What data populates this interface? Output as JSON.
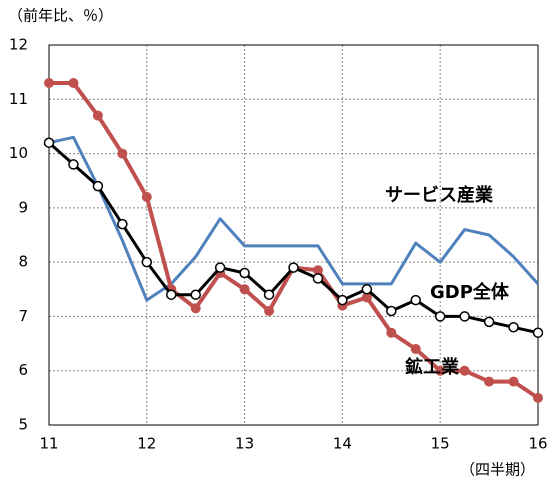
{
  "chart_data": {
    "type": "line",
    "title": "（前年比、％）",
    "xlabel": "（四半期）",
    "x": [
      11,
      11.25,
      11.5,
      11.75,
      12,
      12.25,
      12.5,
      12.75,
      13,
      13.25,
      13.5,
      13.75,
      14,
      14.25,
      14.5,
      14.75,
      15,
      15.25,
      15.5,
      15.75,
      16
    ],
    "series": [
      {
        "name": "サービス産業",
        "color": "#4f81bd",
        "marker": "none",
        "values": [
          10.2,
          10.3,
          9.4,
          8.4,
          7.3,
          7.6,
          8.1,
          8.8,
          8.3,
          8.3,
          8.3,
          8.3,
          7.6,
          7.6,
          7.6,
          8.35,
          8.0,
          8.6,
          8.5,
          8.1,
          7.6
        ]
      },
      {
        "name": "鉱工業",
        "color": "#c0504d",
        "marker": "filled",
        "values": [
          11.3,
          11.3,
          10.7,
          10.0,
          9.2,
          7.5,
          7.15,
          7.8,
          7.5,
          7.1,
          7.9,
          7.85,
          7.2,
          7.35,
          6.7,
          6.4,
          6.0,
          6.0,
          5.8,
          5.8,
          5.5
        ]
      },
      {
        "name": "GDP全体",
        "color": "#000000",
        "marker": "open",
        "values": [
          10.2,
          9.8,
          9.4,
          8.7,
          8.0,
          7.4,
          7.4,
          7.9,
          7.8,
          7.4,
          7.9,
          7.7,
          7.3,
          7.5,
          7.1,
          7.3,
          7.0,
          7.0,
          6.9,
          6.8,
          6.7
        ]
      }
    ],
    "xlim": [
      11,
      16
    ],
    "xticks": [
      11,
      12,
      13,
      14,
      15,
      16
    ],
    "ylim": [
      5,
      12
    ],
    "yticks": [
      5,
      6,
      7,
      8,
      9,
      10,
      11,
      12
    ],
    "grid": true
  }
}
